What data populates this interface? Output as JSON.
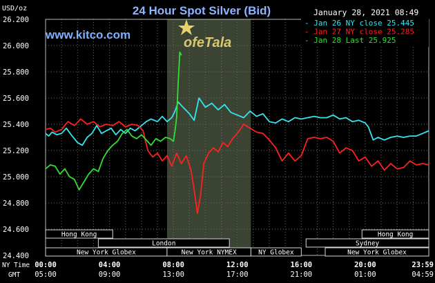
{
  "chart_data": {
    "type": "line",
    "title": "24 Hour Spot Silver (Bid)",
    "subtitle": "January 28, 2021 08:49",
    "watermark": "www.kitco.com",
    "logo_text": "ofeTala",
    "ylabel": "USD/oz",
    "ylim": [
      24.4,
      26.2
    ],
    "y_ticks": [
      "24.400",
      "24.600",
      "24.800",
      "25.000",
      "25.200",
      "25.400",
      "25.600",
      "25.800",
      "26.000",
      "26.200"
    ],
    "x_range": [
      0,
      23.98
    ],
    "x_ticks": [
      {
        "hour": 0,
        "ny": "00:00",
        "gmt": "05:00"
      },
      {
        "hour": 4,
        "ny": "04:00",
        "gmt": "09:00"
      },
      {
        "hour": 8,
        "ny": "08:00",
        "gmt": "13:00"
      },
      {
        "hour": 12,
        "ny": "12:00",
        "gmt": "17:00"
      },
      {
        "hour": 16,
        "ny": "16:00",
        "gmt": "21:00"
      },
      {
        "hour": 20,
        "ny": "20:00",
        "gmt": "01:00"
      },
      {
        "hour": 23.98,
        "ny": "23:59",
        "gmt": "04:59"
      }
    ],
    "axis_row_labels": {
      "ny": "NY Time",
      "gmt": "GMT"
    },
    "grid": true,
    "legend_position": "top-right",
    "highlight_band": [
      7.6,
      12.85
    ],
    "sessions": [
      {
        "label": "Hong Kong",
        "start": 0,
        "end": 4.2,
        "row": 0
      },
      {
        "label": "London",
        "start": 3.3,
        "end": 11.5,
        "row": 1
      },
      {
        "label": "New York Globex",
        "start": 0,
        "end": 7.6,
        "row": 2
      },
      {
        "label": "New York NYMEX",
        "start": 7.6,
        "end": 12.85,
        "row": 2
      },
      {
        "label": "NY Globex",
        "start": 12.85,
        "end": 16.0,
        "row": 2
      },
      {
        "label": "Hong Kong",
        "start": 19.8,
        "end": 23.98,
        "row": 0
      },
      {
        "label": "Sydney",
        "start": 16.3,
        "end": 23.98,
        "row": 1
      },
      {
        "label": "New York Globex",
        "start": 17.5,
        "end": 23.98,
        "row": 2
      }
    ],
    "series": [
      {
        "name": "Jan 26 NY close 25.445",
        "color": "#33e6f0",
        "x": [
          0.0,
          0.2,
          0.4,
          0.7,
          1.0,
          1.3,
          1.6,
          2.0,
          2.3,
          2.6,
          2.9,
          3.2,
          3.5,
          3.8,
          4.1,
          4.4,
          4.7,
          5.0,
          5.3,
          5.6,
          6.0,
          6.3,
          6.6,
          7.0,
          7.3,
          7.6,
          7.9,
          8.1,
          8.3,
          8.6,
          9.0,
          9.3,
          9.6,
          10.0,
          10.4,
          10.8,
          11.2,
          11.6,
          12.0,
          12.4,
          12.8,
          13.2,
          13.6,
          14.0,
          14.4,
          14.8,
          15.2,
          15.6,
          16.0,
          16.4,
          16.8,
          17.2,
          17.6,
          18.0,
          18.4,
          18.8,
          19.2,
          19.6,
          20.0,
          20.2,
          20.5,
          20.8,
          21.2,
          21.6,
          22.0,
          22.4,
          22.8,
          23.2,
          23.6,
          23.98
        ],
        "values": [
          25.33,
          25.31,
          25.34,
          25.32,
          25.33,
          25.37,
          25.32,
          25.26,
          25.24,
          25.3,
          25.33,
          25.39,
          25.33,
          25.35,
          25.37,
          25.32,
          25.36,
          25.33,
          25.37,
          25.35,
          25.39,
          25.42,
          25.44,
          25.42,
          25.46,
          25.42,
          25.45,
          25.5,
          25.57,
          25.53,
          25.48,
          25.43,
          25.6,
          25.53,
          25.56,
          25.51,
          25.55,
          25.49,
          25.47,
          25.45,
          25.5,
          25.46,
          25.48,
          25.42,
          25.41,
          25.44,
          25.42,
          25.45,
          25.44,
          25.45,
          25.46,
          25.45,
          25.45,
          25.47,
          25.44,
          25.45,
          25.42,
          25.43,
          25.41,
          25.38,
          25.28,
          25.3,
          25.28,
          25.3,
          25.31,
          25.3,
          25.31,
          25.31,
          25.33,
          25.35
        ]
      },
      {
        "name": "Jan 27 NY close 25.285",
        "color": "#ff2020",
        "x": [
          0.0,
          0.3,
          0.6,
          1.0,
          1.4,
          1.8,
          2.2,
          2.6,
          3.0,
          3.4,
          3.8,
          4.2,
          4.6,
          5.0,
          5.4,
          5.8,
          6.1,
          6.4,
          6.7,
          7.0,
          7.3,
          7.6,
          7.9,
          8.2,
          8.5,
          8.8,
          9.1,
          9.3,
          9.5,
          9.7,
          9.9,
          10.2,
          10.5,
          10.8,
          11.1,
          11.4,
          11.7,
          12.0,
          12.4,
          12.8,
          13.2,
          13.6,
          14.0,
          14.4,
          14.8,
          15.2,
          15.6,
          16.0,
          16.4,
          16.8,
          17.2,
          17.6,
          18.0,
          18.4,
          18.8,
          19.2,
          19.6,
          20.0,
          20.4,
          20.8,
          21.2,
          21.6,
          22.0,
          22.4,
          22.8,
          23.2,
          23.6,
          23.98
        ],
        "values": [
          25.36,
          25.37,
          25.34,
          25.36,
          25.42,
          25.39,
          25.44,
          25.4,
          25.42,
          25.38,
          25.4,
          25.39,
          25.42,
          25.38,
          25.4,
          25.39,
          25.35,
          25.2,
          25.15,
          25.18,
          25.12,
          25.16,
          25.08,
          25.18,
          25.1,
          25.16,
          25.05,
          24.9,
          24.72,
          24.86,
          25.1,
          25.18,
          25.22,
          25.19,
          25.26,
          25.23,
          25.29,
          25.33,
          25.4,
          25.37,
          25.34,
          25.33,
          25.28,
          25.22,
          25.12,
          25.18,
          25.12,
          25.16,
          25.29,
          25.3,
          25.29,
          25.3,
          25.27,
          25.18,
          25.22,
          25.2,
          25.12,
          25.15,
          25.08,
          25.12,
          25.05,
          25.1,
          25.06,
          25.07,
          25.12,
          25.09,
          25.1,
          25.09
        ]
      },
      {
        "name": "Jan 28 Last 25.925",
        "color": "#33e033",
        "x": [
          0.0,
          0.3,
          0.6,
          0.9,
          1.2,
          1.5,
          1.8,
          2.1,
          2.4,
          2.7,
          3.0,
          3.3,
          3.6,
          3.9,
          4.2,
          4.5,
          4.8,
          5.1,
          5.4,
          5.7,
          6.0,
          6.3,
          6.6,
          6.9,
          7.2,
          7.5,
          7.8,
          8.0,
          8.1,
          8.2,
          8.3,
          8.4,
          8.5
        ],
        "values": [
          25.06,
          25.09,
          25.08,
          25.02,
          25.06,
          25.0,
          24.98,
          24.9,
          24.96,
          25.02,
          25.06,
          25.04,
          25.14,
          25.2,
          25.24,
          25.27,
          25.33,
          25.36,
          25.31,
          25.29,
          25.32,
          25.28,
          25.24,
          25.29,
          25.27,
          25.3,
          25.29,
          25.27,
          25.35,
          25.45,
          25.72,
          25.95,
          25.925
        ]
      }
    ]
  }
}
